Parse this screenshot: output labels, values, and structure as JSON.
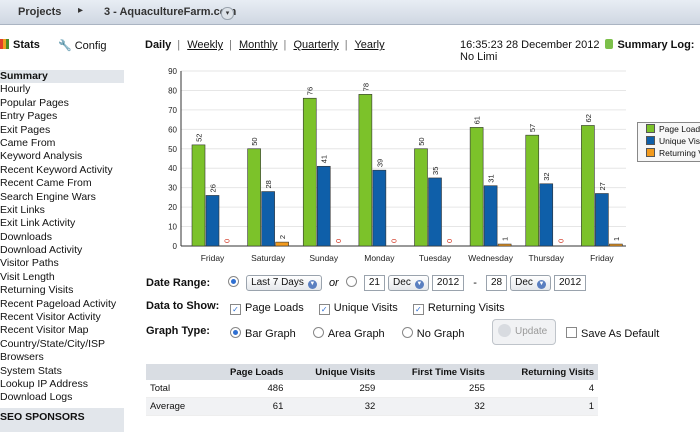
{
  "topbar": {
    "projects_label": "Projects",
    "crumb_sep": "▸",
    "site_label": "3 - AquacultureFarm.com",
    "dropdown_glyph": "▾"
  },
  "nav": {
    "stats_label": "Stats",
    "config_label": "Config"
  },
  "sidebar": {
    "items": [
      {
        "label": "Summary",
        "active": true
      },
      {
        "label": "Hourly"
      },
      {
        "label": "Popular Pages"
      },
      {
        "label": "Entry Pages"
      },
      {
        "label": "Exit Pages"
      },
      {
        "label": "Came From"
      },
      {
        "label": "Keyword Analysis"
      },
      {
        "label": "Recent Keyword Activity"
      },
      {
        "label": "Recent Came From"
      },
      {
        "label": "Search Engine Wars"
      },
      {
        "label": "Exit Links"
      },
      {
        "label": "Exit Link Activity"
      },
      {
        "label": "Downloads"
      },
      {
        "label": "Download Activity"
      },
      {
        "label": "Visitor Paths"
      },
      {
        "label": "Visit Length"
      },
      {
        "label": "Returning Visits"
      },
      {
        "label": "Recent Pageload Activity"
      },
      {
        "label": "Recent Visitor Activity"
      },
      {
        "label": "Recent Visitor Map"
      },
      {
        "label": "Country/State/City/ISP"
      },
      {
        "label": "Browsers"
      },
      {
        "label": "System Stats"
      },
      {
        "label": "Lookup IP Address"
      },
      {
        "label": "Download Logs"
      }
    ],
    "sponsors_label": "SEO SPONSORS"
  },
  "periods": {
    "daily": "Daily",
    "weekly": "Weekly",
    "monthly": "Monthly",
    "quarterly": "Quarterly",
    "yearly": "Yearly",
    "sep": "|"
  },
  "clock": {
    "time": "16:35:23",
    "date": "28 December 2012",
    "summary_log": "Summary Log:",
    "summary_value": "No Limi"
  },
  "colors": {
    "page_loads": "#7cc22a",
    "unique_visits": "#0f5fa9",
    "returning_visits": "#f29a1d"
  },
  "chart_data": {
    "type": "bar",
    "categories": [
      "Friday",
      "Saturday",
      "Sunday",
      "Monday",
      "Tuesday",
      "Wednesday",
      "Thursday",
      "Friday"
    ],
    "series": [
      {
        "name": "Page Loads",
        "values": [
          52,
          50,
          76,
          78,
          50,
          61,
          57,
          62
        ]
      },
      {
        "name": "Unique Visits",
        "values": [
          26,
          28,
          41,
          39,
          35,
          31,
          32,
          27
        ]
      },
      {
        "name": "Returning Visits",
        "values": [
          0,
          2,
          0,
          0,
          0,
          1,
          0,
          1
        ]
      }
    ],
    "yticks": [
      0,
      10,
      20,
      30,
      40,
      50,
      60,
      70,
      80,
      90
    ],
    "ylim": [
      0,
      90
    ],
    "grid": true,
    "legend_position": "right"
  },
  "legend": {
    "items": [
      "Page Loads",
      "Unique Visits",
      "Returning Visits"
    ]
  },
  "form": {
    "date_range_label": "Date Range:",
    "range_option": "Last 7 Days",
    "or_label": "or",
    "from_day": "21",
    "from_month": "Dec",
    "from_year": "2012",
    "dash": "-",
    "to_day": "28",
    "to_month": "Dec",
    "to_year": "2012",
    "data_show_label": "Data to Show:",
    "show_page_loads": "Page Loads",
    "show_unique": "Unique Visits",
    "show_returning": "Returning Visits",
    "graph_type_label": "Graph Type:",
    "bar_graph": "Bar Graph",
    "area_graph": "Area Graph",
    "no_graph": "No Graph",
    "update_label": "Update",
    "save_default": "Save As Default"
  },
  "summary_table": {
    "headers": [
      "",
      "Page Loads",
      "Unique Visits",
      "First Time Visits",
      "Returning Visits"
    ],
    "rows": [
      [
        "Total",
        "486",
        "259",
        "255",
        "4"
      ],
      [
        "Average",
        "61",
        "32",
        "32",
        "1"
      ]
    ]
  }
}
